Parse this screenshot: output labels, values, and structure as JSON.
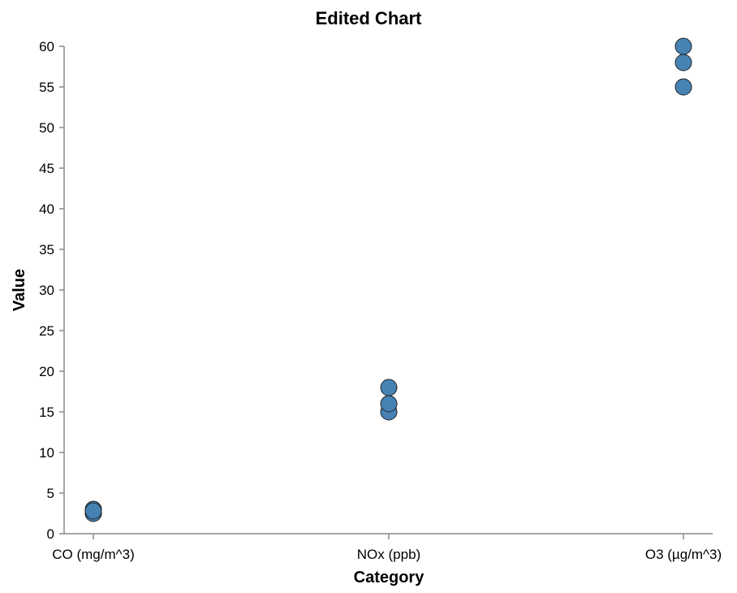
{
  "chart_data": {
    "type": "scatter",
    "title": "Edited Chart",
    "xlabel": "Category",
    "ylabel": "Value",
    "categories": [
      "CO (mg/m^3)",
      "NOx (ppb)",
      "O3 (µg/m^3)"
    ],
    "points": [
      {
        "category": "CO (mg/m^3)",
        "value": 2.5
      },
      {
        "category": "CO (mg/m^3)",
        "value": 3.0
      },
      {
        "category": "CO (mg/m^3)",
        "value": 2.8
      },
      {
        "category": "NOx (ppb)",
        "value": 15
      },
      {
        "category": "NOx (ppb)",
        "value": 18
      },
      {
        "category": "NOx (ppb)",
        "value": 16
      },
      {
        "category": "O3 (µg/m^3)",
        "value": 55
      },
      {
        "category": "O3 (µg/m^3)",
        "value": 60
      },
      {
        "category": "O3 (µg/m^3)",
        "value": 58
      }
    ],
    "ylim": [
      0,
      60
    ],
    "yticks": [
      0,
      5,
      10,
      15,
      20,
      25,
      30,
      35,
      40,
      45,
      50,
      55,
      60
    ],
    "grid": false,
    "point_color": "#4682b4",
    "point_stroke": "#222222"
  }
}
